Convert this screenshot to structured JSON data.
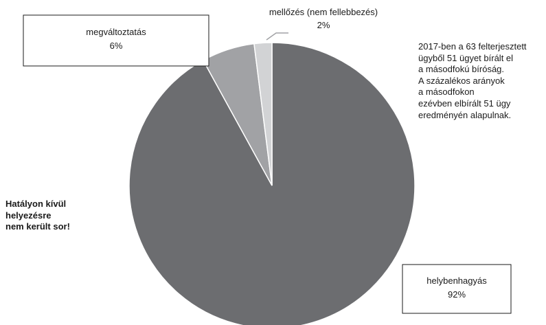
{
  "chart_data": {
    "type": "pie",
    "title": "",
    "slices": [
      {
        "label": "helybenhagyás",
        "value": 92,
        "value_label": "92%",
        "color": "#6c6d70"
      },
      {
        "label": "megváltoztatás",
        "value": 6,
        "value_label": "6%",
        "color": "#a1a2a5"
      },
      {
        "label": "mellőzés (nem fellebbezés)",
        "value": 2,
        "value_label": "2%",
        "color": "#d2d3d5"
      }
    ],
    "start_angle_deg": 0,
    "direction": "clockwise",
    "legend": "none"
  },
  "notes": {
    "right": [
      "2017-ben a 63 felterjesztett",
      "ügyből 51 ügyet bírált el",
      "a másodfokú bíróság.",
      "A százalékos arányok",
      "a másodfokon",
      "ezévben elbírált 51 ügy",
      "eredményén alapulnak."
    ],
    "left": [
      "Hatályon kívül",
      "helyezésre",
      "nem került sor!"
    ]
  }
}
